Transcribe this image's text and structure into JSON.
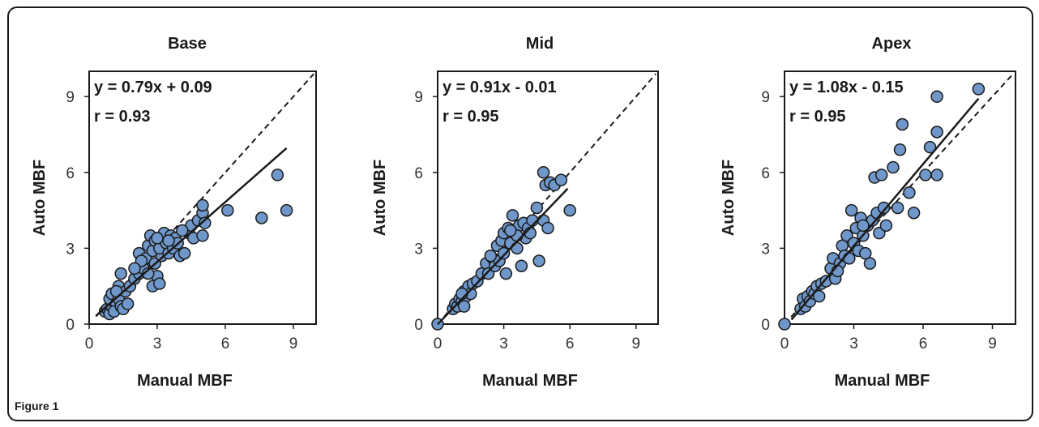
{
  "figure_caption": "Figure 1",
  "chart_data": [
    {
      "type": "scatter",
      "title": "Base",
      "xlabel": "Manual MBF",
      "ylabel": "Auto MBF",
      "xlim": [
        0,
        10
      ],
      "ylim": [
        0,
        10
      ],
      "xticks": [
        0,
        3,
        6,
        9
      ],
      "yticks": [
        0,
        3,
        6,
        9
      ],
      "annotations": [
        "y = 0.79x + 0.09",
        "r = 0.93"
      ],
      "fit_line": {
        "slope": 0.79,
        "intercept": 0.09,
        "x_range": [
          0.3,
          8.7
        ]
      },
      "identity_line": {
        "x_range": [
          0.3,
          9.9
        ]
      },
      "point_color": "#6f97c9",
      "points": [
        [
          0.7,
          0.5
        ],
        [
          0.8,
          0.6
        ],
        [
          0.9,
          0.4
        ],
        [
          1.0,
          0.7
        ],
        [
          1.1,
          0.9
        ],
        [
          0.9,
          1.0
        ],
        [
          1.2,
          0.8
        ],
        [
          1.0,
          1.2
        ],
        [
          1.3,
          1.0
        ],
        [
          1.1,
          0.5
        ],
        [
          1.4,
          0.7
        ],
        [
          1.5,
          0.6
        ],
        [
          1.3,
          1.5
        ],
        [
          1.4,
          2.0
        ],
        [
          1.6,
          1.3
        ],
        [
          1.8,
          1.5
        ],
        [
          2.0,
          1.8
        ],
        [
          1.7,
          0.8
        ],
        [
          2.2,
          2.0
        ],
        [
          2.4,
          2.2
        ],
        [
          2.2,
          2.8
        ],
        [
          2.5,
          2.6
        ],
        [
          2.6,
          3.1
        ],
        [
          2.7,
          3.5
        ],
        [
          2.8,
          2.9
        ],
        [
          2.9,
          3.3
        ],
        [
          2.9,
          2.4
        ],
        [
          3.0,
          1.9
        ],
        [
          2.8,
          1.5
        ],
        [
          3.1,
          1.6
        ],
        [
          3.2,
          2.7
        ],
        [
          3.1,
          3.0
        ],
        [
          3.3,
          3.6
        ],
        [
          3.4,
          3.2
        ],
        [
          3.5,
          2.8
        ],
        [
          3.6,
          3.5
        ],
        [
          3.7,
          3.0
        ],
        [
          3.8,
          3.4
        ],
        [
          3.9,
          3.2
        ],
        [
          4.0,
          2.7
        ],
        [
          4.2,
          2.8
        ],
        [
          4.4,
          3.6
        ],
        [
          4.5,
          3.9
        ],
        [
          4.6,
          3.4
        ],
        [
          4.8,
          4.1
        ],
        [
          5.0,
          4.4
        ],
        [
          5.0,
          3.5
        ],
        [
          5.1,
          4.0
        ],
        [
          5.0,
          4.7
        ],
        [
          6.1,
          4.5
        ],
        [
          7.6,
          4.2
        ],
        [
          8.3,
          5.9
        ],
        [
          8.7,
          4.5
        ],
        [
          2.3,
          2.5
        ],
        [
          2.0,
          2.2
        ],
        [
          1.2,
          1.3
        ],
        [
          3.5,
          3.3
        ],
        [
          3.0,
          3.4
        ],
        [
          2.6,
          2.0
        ],
        [
          4.1,
          3.7
        ]
      ]
    },
    {
      "type": "scatter",
      "title": "Mid",
      "xlabel": "Manual MBF",
      "ylabel": "Auto MBF",
      "xlim": [
        0,
        10
      ],
      "ylim": [
        0,
        10
      ],
      "xticks": [
        0,
        3,
        6,
        9
      ],
      "yticks": [
        0,
        3,
        6,
        9
      ],
      "annotations": [
        "y = 0.91x - 0.01",
        "r = 0.95"
      ],
      "fit_line": {
        "slope": 0.91,
        "intercept": -0.01,
        "x_range": [
          0.0,
          5.9
        ]
      },
      "identity_line": {
        "x_range": [
          0.0,
          9.9
        ]
      },
      "point_color": "#6f97c9",
      "points": [
        [
          0.0,
          0.0
        ],
        [
          0.7,
          0.6
        ],
        [
          0.8,
          0.8
        ],
        [
          0.9,
          0.7
        ],
        [
          1.0,
          1.0
        ],
        [
          1.1,
          0.9
        ],
        [
          1.2,
          1.3
        ],
        [
          1.3,
          1.1
        ],
        [
          1.4,
          1.5
        ],
        [
          1.2,
          0.7
        ],
        [
          1.5,
          1.2
        ],
        [
          1.6,
          1.6
        ],
        [
          1.8,
          1.7
        ],
        [
          2.0,
          2.0
        ],
        [
          2.2,
          2.4
        ],
        [
          2.3,
          2.0
        ],
        [
          2.5,
          2.6
        ],
        [
          2.6,
          2.3
        ],
        [
          2.7,
          3.1
        ],
        [
          2.8,
          2.5
        ],
        [
          2.9,
          3.3
        ],
        [
          3.0,
          2.8
        ],
        [
          3.0,
          3.6
        ],
        [
          3.1,
          2.0
        ],
        [
          3.2,
          3.8
        ],
        [
          3.3,
          3.2
        ],
        [
          3.4,
          4.3
        ],
        [
          3.5,
          3.6
        ],
        [
          3.6,
          3.0
        ],
        [
          3.7,
          3.9
        ],
        [
          3.8,
          2.3
        ],
        [
          3.9,
          4.0
        ],
        [
          4.0,
          3.4
        ],
        [
          4.1,
          3.8
        ],
        [
          4.2,
          3.6
        ],
        [
          4.3,
          4.1
        ],
        [
          4.5,
          4.6
        ],
        [
          4.6,
          2.5
        ],
        [
          4.8,
          4.1
        ],
        [
          4.8,
          6.0
        ],
        [
          4.9,
          5.5
        ],
        [
          5.0,
          3.8
        ],
        [
          5.1,
          5.6
        ],
        [
          5.3,
          5.5
        ],
        [
          5.6,
          5.7
        ],
        [
          6.0,
          4.5
        ],
        [
          3.6,
          3.5
        ],
        [
          2.4,
          2.7
        ],
        [
          1.1,
          1.2
        ],
        [
          3.3,
          3.7
        ]
      ]
    },
    {
      "type": "scatter",
      "title": "Apex",
      "xlabel": "Manual MBF",
      "ylabel": "Auto MBF",
      "xlim": [
        0,
        10
      ],
      "ylim": [
        0,
        10
      ],
      "xticks": [
        0,
        3,
        6,
        9
      ],
      "yticks": [
        0,
        3,
        6,
        9
      ],
      "annotations": [
        "y = 1.08x - 0.15",
        "r = 0.95"
      ],
      "fit_line": {
        "slope": 1.08,
        "intercept": -0.15,
        "x_range": [
          0.3,
          8.4
        ]
      },
      "identity_line": {
        "x_range": [
          0.0,
          9.9
        ]
      },
      "point_color": "#6f97c9",
      "points": [
        [
          0.0,
          0.0
        ],
        [
          0.7,
          0.6
        ],
        [
          0.8,
          1.0
        ],
        [
          0.9,
          0.7
        ],
        [
          1.0,
          1.1
        ],
        [
          1.1,
          0.9
        ],
        [
          1.2,
          1.3
        ],
        [
          1.3,
          1.2
        ],
        [
          1.4,
          1.5
        ],
        [
          1.5,
          1.1
        ],
        [
          1.6,
          1.6
        ],
        [
          1.8,
          1.7
        ],
        [
          2.0,
          2.2
        ],
        [
          2.1,
          2.6
        ],
        [
          2.2,
          1.8
        ],
        [
          2.4,
          2.4
        ],
        [
          2.5,
          3.1
        ],
        [
          2.6,
          2.7
        ],
        [
          2.7,
          3.5
        ],
        [
          2.8,
          2.6
        ],
        [
          2.9,
          4.5
        ],
        [
          3.0,
          3.2
        ],
        [
          3.1,
          3.8
        ],
        [
          3.2,
          2.9
        ],
        [
          3.3,
          4.2
        ],
        [
          3.4,
          3.5
        ],
        [
          3.5,
          2.8
        ],
        [
          3.6,
          3.9
        ],
        [
          3.7,
          2.4
        ],
        [
          3.8,
          4.1
        ],
        [
          3.9,
          5.8
        ],
        [
          4.0,
          4.4
        ],
        [
          4.1,
          3.6
        ],
        [
          4.2,
          5.9
        ],
        [
          4.3,
          4.6
        ],
        [
          4.4,
          3.9
        ],
        [
          4.7,
          6.2
        ],
        [
          4.9,
          4.6
        ],
        [
          5.0,
          6.9
        ],
        [
          5.1,
          7.9
        ],
        [
          5.4,
          5.2
        ],
        [
          5.6,
          4.4
        ],
        [
          6.1,
          5.9
        ],
        [
          6.3,
          7.0
        ],
        [
          6.6,
          9.0
        ],
        [
          6.6,
          7.6
        ],
        [
          6.6,
          5.9
        ],
        [
          8.4,
          9.3
        ],
        [
          3.4,
          3.9
        ],
        [
          2.3,
          2.1
        ]
      ]
    }
  ]
}
